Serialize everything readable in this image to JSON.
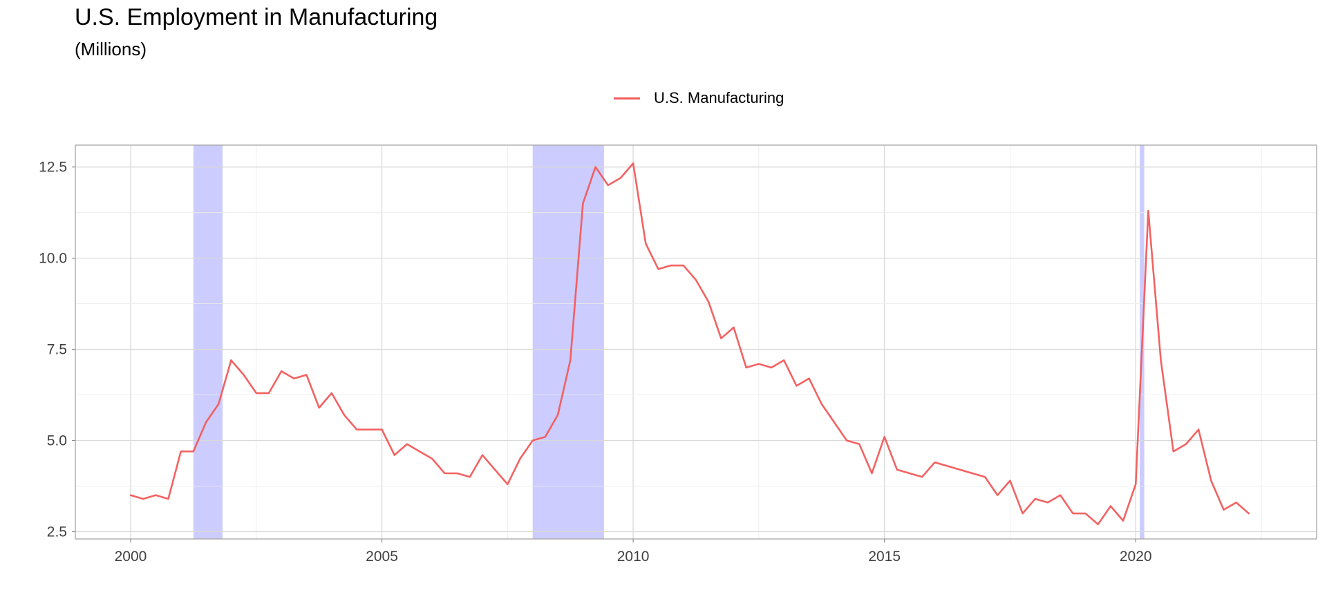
{
  "chart_data": {
    "type": "line",
    "title": "U.S. Employment in Manufacturing",
    "subtitle": "(Millions)",
    "xlabel": "",
    "ylabel": "",
    "xlim": [
      1998.9,
      2023.6
    ],
    "ylim": [
      2.3,
      13.1
    ],
    "x_ticks": [
      2000,
      2005,
      2010,
      2015,
      2020
    ],
    "x_tick_labels": [
      "2000",
      "2005",
      "2010",
      "2015",
      "2020"
    ],
    "y_ticks": [
      2.5,
      5.0,
      7.5,
      10.0,
      12.5
    ],
    "y_tick_labels": [
      "2.5",
      "5.0",
      "7.5",
      "10.0",
      "12.5"
    ],
    "grid": true,
    "legend_position": "top",
    "series": [
      {
        "name": "U.S. Manufacturing",
        "color": "#f25a5a",
        "x": [
          2000.0,
          2000.25,
          2000.5,
          2000.75,
          2001.0,
          2001.25,
          2001.5,
          2001.75,
          2002.0,
          2002.25,
          2002.5,
          2002.75,
          2003.0,
          2003.25,
          2003.5,
          2003.75,
          2004.0,
          2004.25,
          2004.5,
          2004.75,
          2005.0,
          2005.25,
          2005.5,
          2005.75,
          2006.0,
          2006.25,
          2006.5,
          2006.75,
          2007.0,
          2007.25,
          2007.5,
          2007.75,
          2008.0,
          2008.25,
          2008.5,
          2008.75,
          2009.0,
          2009.25,
          2009.5,
          2009.75,
          2010.0,
          2010.25,
          2010.5,
          2010.75,
          2011.0,
          2011.25,
          2011.5,
          2011.75,
          2012.0,
          2012.25,
          2012.5,
          2012.75,
          2013.0,
          2013.25,
          2013.5,
          2013.75,
          2014.0,
          2014.25,
          2014.5,
          2014.75,
          2015.0,
          2015.25,
          2015.75,
          2016.0,
          2017.0,
          2017.25,
          2017.5,
          2017.75,
          2018.0,
          2018.25,
          2018.5,
          2018.75,
          2019.0,
          2019.25,
          2019.5,
          2019.75,
          2020.0,
          2020.25,
          2020.5,
          2020.75,
          2021.0,
          2021.25,
          2021.5,
          2021.75,
          2022.0,
          2022.25
        ],
        "y": [
          3.5,
          3.4,
          3.5,
          3.4,
          4.7,
          4.7,
          5.5,
          6.0,
          7.2,
          6.8,
          6.3,
          6.3,
          6.9,
          6.7,
          6.8,
          5.9,
          6.3,
          5.7,
          5.3,
          5.3,
          5.3,
          4.6,
          4.9,
          4.7,
          4.5,
          4.1,
          4.1,
          4.0,
          4.6,
          4.2,
          3.8,
          4.5,
          5.0,
          5.1,
          5.7,
          7.2,
          11.5,
          12.5,
          12.0,
          12.2,
          12.6,
          10.4,
          9.7,
          9.8,
          9.8,
          9.4,
          8.8,
          7.8,
          8.1,
          7.0,
          7.1,
          7.0,
          7.2,
          6.5,
          6.7,
          6.0,
          5.5,
          5.0,
          4.9,
          4.1,
          5.1,
          4.2,
          4.0,
          4.4,
          4.0,
          3.5,
          3.9,
          3.0,
          3.4,
          3.3,
          3.5,
          3.0,
          3.0,
          2.7,
          3.2,
          2.8,
          3.8,
          11.3,
          7.2,
          4.7,
          4.9,
          5.3,
          3.9,
          3.1,
          3.3,
          3.0
        ]
      }
    ],
    "recessions": [
      {
        "start": 2001.25,
        "end": 2001.83
      },
      {
        "start": 2008.0,
        "end": 2009.42
      },
      {
        "start": 2020.08,
        "end": 2020.17
      }
    ],
    "recession_color": "#ccccff"
  }
}
